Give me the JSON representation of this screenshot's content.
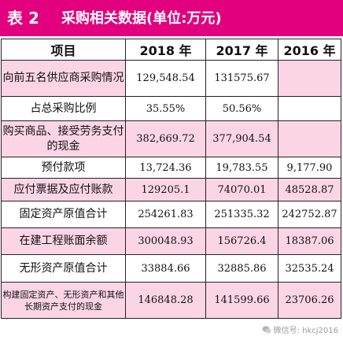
{
  "title": {
    "number": "表 2",
    "text": "采购相关数据(单位:万元)"
  },
  "headers": [
    "项目",
    "2018 年",
    "2017 年",
    "2016 年"
  ],
  "rows": [
    {
      "label": "向前五名供应商采购情况",
      "v2018": "129,548.54",
      "v2017": "131575.67",
      "v2016": ""
    },
    {
      "label": "占总采购比例",
      "v2018": "35.55%",
      "v2017": "50.56%",
      "v2016": ""
    },
    {
      "label": "购买商品、接受劳务支付的现金",
      "v2018": "382,669.72",
      "v2017": "377,904.54",
      "v2016": ""
    },
    {
      "label": "预付款项",
      "v2018": "13,724.36",
      "v2017": "19,783.55",
      "v2016": "9,177.90"
    },
    {
      "label": "应付票据及应付账款",
      "v2018": "129205.1",
      "v2017": "74070.01",
      "v2016": "48528.87"
    },
    {
      "label": "固定资产原值合计",
      "v2018": "254261.83",
      "v2017": "251335.32",
      "v2016": "242752.87"
    },
    {
      "label": "在建工程账面余额",
      "v2018": "300048.93",
      "v2017": "156726.4",
      "v2016": "18387.06"
    },
    {
      "label": "无形资产原值合计",
      "v2018": "33884.66",
      "v2017": "32885.86",
      "v2016": "32535.24"
    },
    {
      "label": "构建固定资产、无形资产和其他长期资产支付的现金",
      "v2018": "146848.28",
      "v2017": "141599.66",
      "v2016": "23706.26"
    }
  ],
  "watermark": {
    "text": "微信号: hkcj2016"
  },
  "colors": {
    "title_bg": "#e3007e",
    "cell_pink": "#fbd5e6"
  }
}
